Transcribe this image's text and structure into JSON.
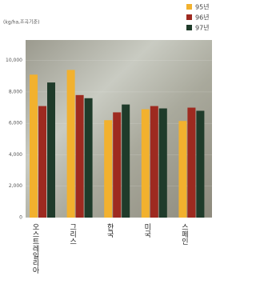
{
  "chart_data": {
    "type": "bar",
    "y_label": "(kg/ha,조곡기준)",
    "categories": [
      "오스트레일리아",
      "그리스",
      "한국",
      "미국",
      "스페인"
    ],
    "series": [
      {
        "name": "95년",
        "color": "#f2b12e",
        "values": [
          9100,
          9400,
          6200,
          6900,
          6150
        ]
      },
      {
        "name": "96년",
        "color": "#9e2a20",
        "values": [
          7100,
          7800,
          6700,
          7100,
          7000
        ]
      },
      {
        "name": "97년",
        "color": "#1f3b2a",
        "values": [
          8600,
          7600,
          7200,
          6950,
          6800
        ]
      }
    ],
    "ylim": [
      0,
      11000
    ],
    "yticks": [
      0,
      {
        "value": 2000,
        "label": "2,000"
      },
      {
        "value": 4000,
        "label": "4,000"
      },
      {
        "value": 6000,
        "label": "6,000"
      },
      {
        "value": 8000,
        "label": "8,000"
      },
      {
        "value": 10000,
        "label": "10,000"
      }
    ],
    "grid": true,
    "legend": "top-right"
  }
}
